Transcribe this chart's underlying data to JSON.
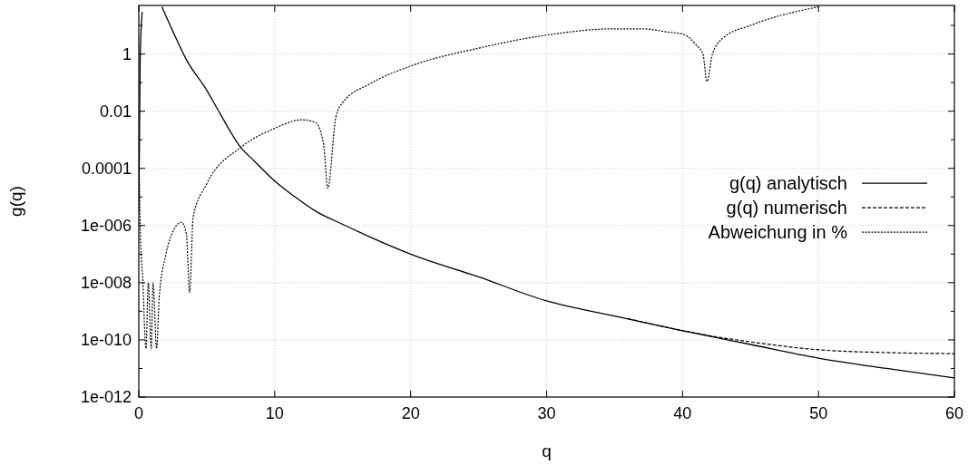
{
  "chart_data": {
    "type": "line",
    "xlabel": "q",
    "ylabel": "g(q)",
    "log": "y",
    "grid": true,
    "legend": "right",
    "marker": "none",
    "xlim": [
      0,
      60
    ],
    "xticks": [
      0,
      10,
      20,
      30,
      40,
      50,
      60
    ],
    "ylim": [
      1e-12,
      50
    ],
    "yticks": [
      {
        "value": 1e-12,
        "label": "1e-012"
      },
      {
        "value": 1e-11,
        "label": null
      },
      {
        "value": 1e-10,
        "label": "1e-010"
      },
      {
        "value": 1e-09,
        "label": null
      },
      {
        "value": 1e-08,
        "label": "1e-008"
      },
      {
        "value": 1e-07,
        "label": null
      },
      {
        "value": 1e-06,
        "label": "1e-006"
      },
      {
        "value": 1e-05,
        "label": null
      },
      0.0001,
      {
        "value": 0.001,
        "label": null
      },
      0.01,
      {
        "value": 0.1,
        "label": null
      },
      1,
      {
        "value": 10,
        "label": null
      }
    ],
    "series": [
      {
        "name": "g(q) analytisch",
        "color": "#000000",
        "line_style": "solid",
        "x": [
          0,
          0.1,
          0.25,
          0.3,
          1.7,
          2.5,
          3.5,
          5,
          6,
          7.5,
          8.5,
          10,
          11.5,
          13,
          15,
          17,
          20,
          25,
          30,
          35,
          40,
          45,
          50,
          55,
          60
        ],
        "values": [
          3e-06,
          0.6,
          30,
          null,
          45,
          6.3,
          0.63,
          0.054,
          0.0079,
          0.00054,
          0.00018,
          3.6e-05,
          1e-05,
          3.2e-06,
          1.1e-06,
          4e-07,
          1e-07,
          1.6e-08,
          2.3e-09,
          6.8e-10,
          2.1e-10,
          6.9e-11,
          2.3e-11,
          1e-11,
          4.7e-12
        ]
      },
      {
        "name": "g(q) numerisch",
        "color": "#000000",
        "line_style": "dashed",
        "x": [
          36,
          40,
          42,
          45,
          50,
          55,
          60
        ],
        "values": [
          5.5e-10,
          2.1e-10,
          1.4e-10,
          8.5e-11,
          4.5e-11,
          3.6e-11,
          3.3e-11
        ]
      },
      {
        "name": "Abweichung in %",
        "color": "#000000",
        "line_style": "dotted",
        "x": [
          0,
          0.1,
          0.3,
          0.53,
          0.7,
          0.91,
          1.05,
          1.31,
          1.5,
          2,
          2.5,
          3.14,
          3.5,
          3.74,
          4,
          5,
          7.5,
          10,
          12,
          13,
          13.6,
          13.9,
          14.5,
          15,
          17,
          20,
          25,
          30,
          35,
          37,
          39,
          40,
          41,
          41.5,
          41.8,
          42.2,
          43,
          45,
          50
        ],
        "values": [
          0.001,
          1e-06,
          1e-08,
          5e-11,
          1e-08,
          5e-11,
          1e-08,
          5e-11,
          3e-09,
          1e-07,
          6e-07,
          1.3e-06,
          5e-07,
          4.5e-09,
          2e-06,
          2.9e-05,
          0.00054,
          0.0025,
          0.005,
          0.004,
          0.00068,
          2e-05,
          0.0063,
          0.02,
          0.09,
          0.38,
          1.6,
          4.6,
          7.6,
          7.6,
          5.8,
          5,
          2.1,
          1,
          0.11,
          1,
          3.7,
          10,
          45
        ]
      }
    ]
  }
}
